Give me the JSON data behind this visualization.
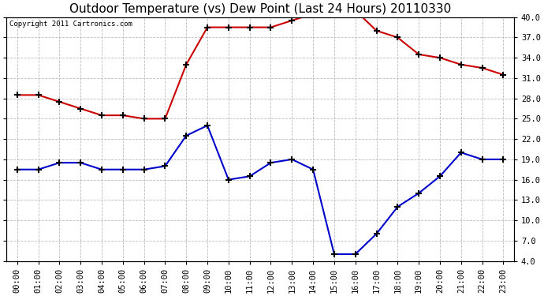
{
  "title": "Outdoor Temperature (vs) Dew Point (Last 24 Hours) 20110330",
  "copyright": "Copyright 2011 Cartronics.com",
  "hours": [
    "00:00",
    "01:00",
    "02:00",
    "03:00",
    "04:00",
    "05:00",
    "06:00",
    "07:00",
    "08:00",
    "09:00",
    "10:00",
    "11:00",
    "12:00",
    "13:00",
    "14:00",
    "15:00",
    "16:00",
    "17:00",
    "18:00",
    "19:00",
    "20:00",
    "21:00",
    "22:00",
    "23:00"
  ],
  "temp_red": [
    28.5,
    28.5,
    27.5,
    26.5,
    25.5,
    25.5,
    25.0,
    25.0,
    33.0,
    38.5,
    38.5,
    38.5,
    38.5,
    39.5,
    40.5,
    41.0,
    41.0,
    38.0,
    37.0,
    34.5,
    34.0,
    33.0,
    32.5,
    31.5
  ],
  "dew_blue": [
    17.5,
    17.5,
    18.5,
    18.5,
    17.5,
    17.5,
    17.5,
    18.0,
    22.5,
    24.0,
    16.0,
    16.5,
    18.5,
    19.0,
    17.5,
    5.0,
    5.0,
    8.0,
    12.0,
    14.0,
    16.5,
    20.0,
    19.0,
    19.0
  ],
  "ylim": [
    4.0,
    40.0
  ],
  "yticks": [
    4.0,
    7.0,
    10.0,
    13.0,
    16.0,
    19.0,
    22.0,
    25.0,
    28.0,
    31.0,
    34.0,
    37.0,
    40.0
  ],
  "bg_color": "#ffffff",
  "grid_color": "#bbbbbb",
  "red_color": "#cc0000",
  "blue_color": "#0000cc",
  "title_fontsize": 11,
  "copyright_fontsize": 6.5,
  "tick_fontsize": 7.5
}
